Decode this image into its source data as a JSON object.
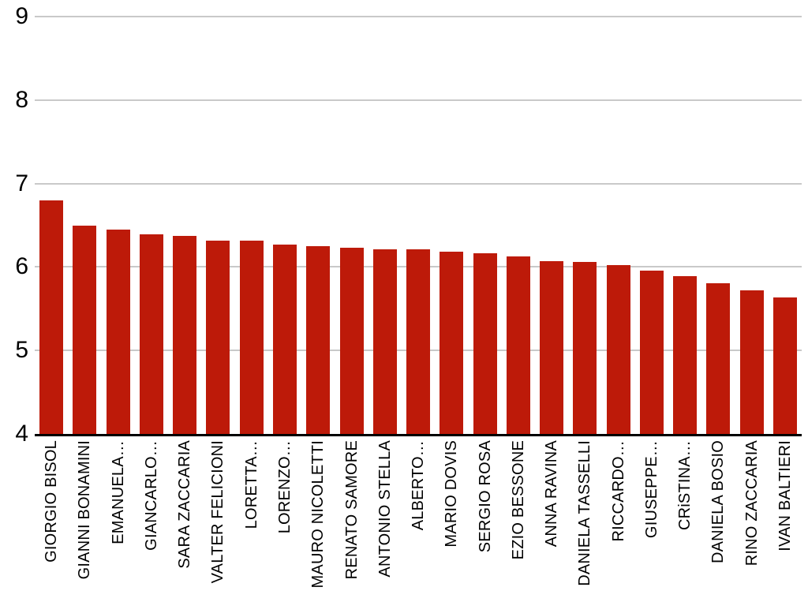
{
  "chart_data": {
    "type": "bar",
    "title": "",
    "xlabel": "",
    "ylabel": "",
    "categories": [
      "GIORGIO BISOL",
      "GIANNI BONAMINI",
      "EMANUELA…",
      "GIANCARLO…",
      "SARA ZACCARIA",
      "VALTER FELICIONI",
      "LORETTA…",
      "LORENZO…",
      "MAURO NICOLETTI",
      "RENATO SAMORE",
      "ANTONIO STELLA",
      "ALBERTO…",
      "MARIO DOVIS",
      "SERGIO ROSA",
      "EZIO BESSONE",
      "ANNA RAVINA",
      "DANIELA TASSELLI",
      "RICCARDO…",
      "GIUSEPPE…",
      "CRiSTINA…",
      "DANIELA BOSIO",
      "RINO ZACCARIA",
      "IVAN BALTIERI"
    ],
    "values": [
      6.8,
      6.5,
      6.45,
      6.39,
      6.37,
      6.32,
      6.32,
      6.27,
      6.25,
      6.23,
      6.21,
      6.21,
      6.18,
      6.16,
      6.13,
      6.07,
      6.06,
      6.02,
      5.96,
      5.89,
      5.81,
      5.72,
      5.64
    ],
    "ylim": [
      4,
      9
    ],
    "yticks": [
      9,
      8,
      7,
      6,
      5,
      4
    ],
    "grid": true,
    "legend_position": "none",
    "bar_color": "#bd1a09",
    "gridline_color": "#c9c9c9",
    "axis_line_color": "#000000",
    "label_color": "#000000",
    "background_color": "#ffffff"
  }
}
